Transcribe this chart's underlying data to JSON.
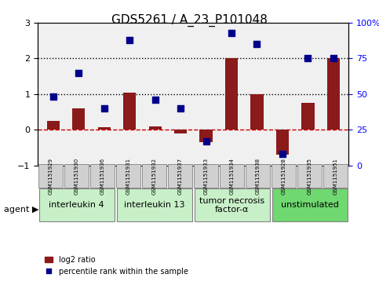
{
  "title": "GDS5261 / A_23_P101048",
  "samples": [
    "GSM1151929",
    "GSM1151930",
    "GSM1151936",
    "GSM1151931",
    "GSM1151932",
    "GSM1151937",
    "GSM1151933",
    "GSM1151934",
    "GSM1151938",
    "GSM1151928",
    "GSM1151935",
    "GSM1151951"
  ],
  "log2_ratio": [
    0.25,
    0.6,
    0.07,
    1.05,
    0.1,
    -0.1,
    -0.35,
    2.02,
    1.0,
    -0.7,
    0.75,
    2.0
  ],
  "percentile": [
    48,
    65,
    40,
    88,
    46,
    40,
    17,
    93,
    85,
    8,
    75,
    75
  ],
  "agents": [
    {
      "label": "interleukin 4",
      "start": 0,
      "end": 3,
      "color": "#c8f0c8"
    },
    {
      "label": "interleukin 13",
      "start": 3,
      "end": 6,
      "color": "#c8f0c8"
    },
    {
      "label": "tumor necrosis\nfactor-α",
      "start": 6,
      "end": 9,
      "color": "#c8f0c8"
    },
    {
      "label": "unstimulated",
      "start": 9,
      "end": 12,
      "color": "#70d870"
    }
  ],
  "bar_color": "#8B1A1A",
  "dot_color": "#00008B",
  "ylim_left": [
    -1,
    3
  ],
  "ylim_right": [
    0,
    100
  ],
  "yticks_left": [
    -1,
    0,
    1,
    2,
    3
  ],
  "yticks_right": [
    0,
    25,
    50,
    75,
    100
  ],
  "ytick_labels_right": [
    "0",
    "25",
    "50",
    "75",
    "100%"
  ],
  "hlines": [
    1.0,
    2.0
  ],
  "zero_line_color": "#cc0000",
  "bg_color": "#f0f0f0",
  "agent_label_fontsize": 8,
  "sample_fontsize": 7,
  "title_fontsize": 11
}
